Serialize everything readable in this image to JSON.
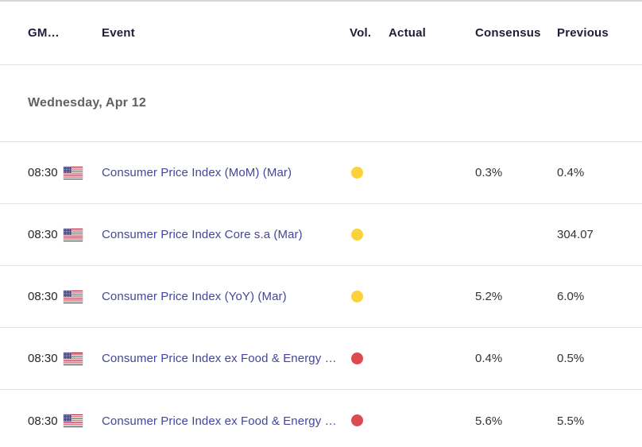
{
  "table": {
    "columns": [
      "GM…",
      "Event",
      "Vol.",
      "Actual",
      "Consensus",
      "Previous"
    ],
    "date_header": "Wednesday, Apr 12",
    "rows": [
      {
        "time": "08:30",
        "country": "United States",
        "event": "Consumer Price Index (MoM) (Mar)",
        "volatility": "medium",
        "actual": "",
        "consensus": "0.3%",
        "previous": "0.4%"
      },
      {
        "time": "08:30",
        "country": "United States",
        "event": "Consumer Price Index Core s.a (Mar)",
        "volatility": "medium",
        "actual": "",
        "consensus": "",
        "previous": "304.07"
      },
      {
        "time": "08:30",
        "country": "United States",
        "event": "Consumer Price Index (YoY) (Mar)",
        "volatility": "medium",
        "actual": "",
        "consensus": "5.2%",
        "previous": "6.0%"
      },
      {
        "time": "08:30",
        "country": "United States",
        "event": "Consumer Price Index ex Food & Energy …",
        "volatility": "high",
        "actual": "",
        "consensus": "0.4%",
        "previous": "0.5%"
      },
      {
        "time": "08:30",
        "country": "United States",
        "event": "Consumer Price Index ex Food & Energy …",
        "volatility": "high",
        "actual": "",
        "consensus": "5.6%",
        "previous": "5.5%"
      }
    ],
    "colors": {
      "volatility_medium": "#fad23c",
      "volatility_high": "#d94b50",
      "event_link": "#45459b"
    }
  }
}
